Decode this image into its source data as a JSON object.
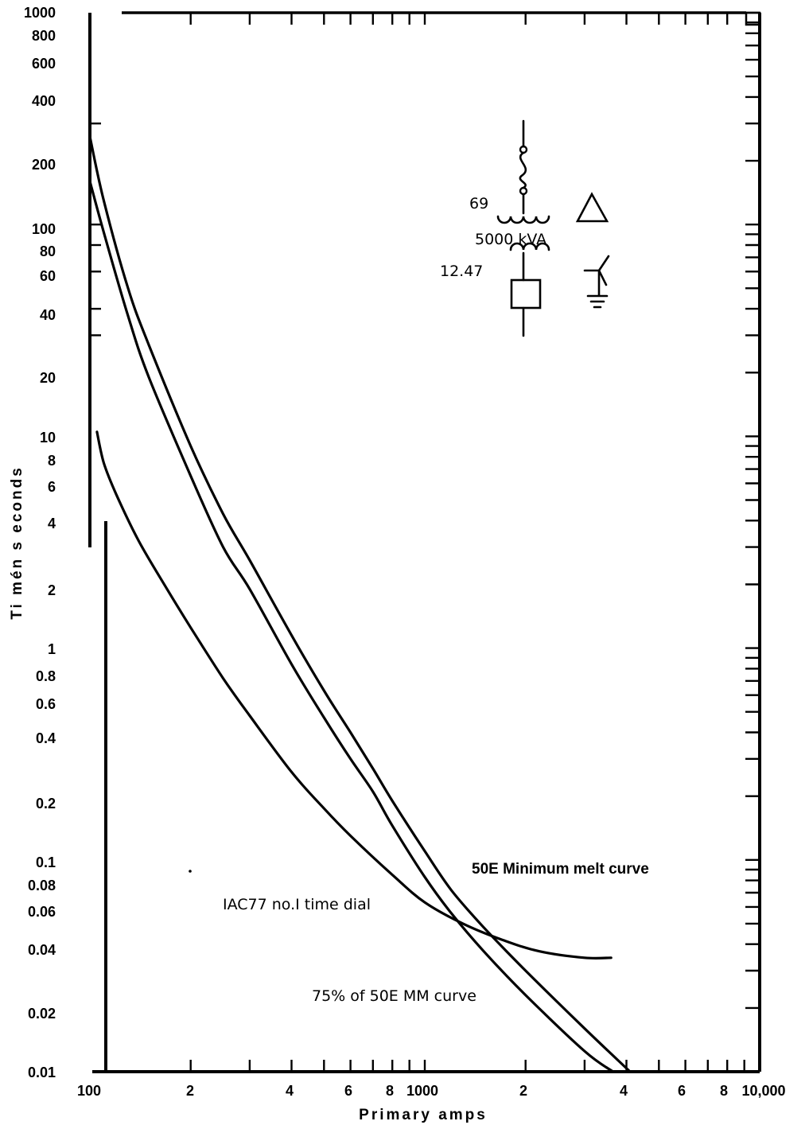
{
  "chart_data": {
    "type": "line",
    "title": "",
    "xlabel": "Primary amps",
    "ylabel": "Ti mén s econds",
    "x_scale": "log",
    "y_scale": "log",
    "xlim": [
      100,
      10000
    ],
    "ylim": [
      0.01,
      1000
    ],
    "x_tick_labels": [
      {
        "value": 100,
        "label": "100"
      },
      {
        "value": 200,
        "label": "2"
      },
      {
        "value": 400,
        "label": "4"
      },
      {
        "value": 600,
        "label": "6"
      },
      {
        "value": 800,
        "label": "8"
      },
      {
        "value": 1000,
        "label": "1000"
      },
      {
        "value": 2000,
        "label": "2"
      },
      {
        "value": 4000,
        "label": "4"
      },
      {
        "value": 6000,
        "label": "6"
      },
      {
        "value": 8000,
        "label": "8"
      },
      {
        "value": 10000,
        "label": "10,000"
      }
    ],
    "y_tick_labels": [
      {
        "value": 1000,
        "label": "1000"
      },
      {
        "value": 800,
        "label": "800"
      },
      {
        "value": 600,
        "label": "600"
      },
      {
        "value": 400,
        "label": "400"
      },
      {
        "value": 200,
        "label": "200"
      },
      {
        "value": 100,
        "label": "100"
      },
      {
        "value": 80,
        "label": "80"
      },
      {
        "value": 60,
        "label": "60"
      },
      {
        "value": 40,
        "label": "40"
      },
      {
        "value": 20,
        "label": "20"
      },
      {
        "value": 10,
        "label": "10"
      },
      {
        "value": 8,
        "label": "8"
      },
      {
        "value": 6,
        "label": "6"
      },
      {
        "value": 4,
        "label": "4"
      },
      {
        "value": 2,
        "label": "2"
      },
      {
        "value": 1,
        "label": "1"
      },
      {
        "value": 0.8,
        "label": "0.8"
      },
      {
        "value": 0.6,
        "label": "0.6"
      },
      {
        "value": 0.4,
        "label": "0.4"
      },
      {
        "value": 0.2,
        "label": "0.2"
      },
      {
        "value": 0.1,
        "label": "0.1"
      },
      {
        "value": 0.08,
        "label": "0.08"
      },
      {
        "value": 0.06,
        "label": "0.06"
      },
      {
        "value": 0.04,
        "label": "0.04"
      },
      {
        "value": 0.02,
        "label": "0.02"
      },
      {
        "value": 0.01,
        "label": "0.01"
      }
    ],
    "series": [
      {
        "name": "50E Minimum melt curve",
        "points": [
          [
            100,
            260
          ],
          [
            110,
            130
          ],
          [
            130,
            50
          ],
          [
            150,
            27
          ],
          [
            200,
            9
          ],
          [
            250,
            4.3
          ],
          [
            300,
            2.6
          ],
          [
            400,
            1.15
          ],
          [
            500,
            0.63
          ],
          [
            600,
            0.4
          ],
          [
            700,
            0.27
          ],
          [
            800,
            0.19
          ],
          [
            1000,
            0.11
          ],
          [
            1200,
            0.072
          ],
          [
            1500,
            0.048
          ],
          [
            2000,
            0.03
          ],
          [
            3000,
            0.016
          ],
          [
            4100,
            0.01
          ]
        ]
      },
      {
        "name": "75% of 50E MM curve",
        "points": [
          [
            100,
            160
          ],
          [
            110,
            92
          ],
          [
            130,
            37
          ],
          [
            150,
            19
          ],
          [
            200,
            6.5
          ],
          [
            250,
            3.0
          ],
          [
            300,
            1.9
          ],
          [
            400,
            0.84
          ],
          [
            500,
            0.47
          ],
          [
            600,
            0.3
          ],
          [
            700,
            0.21
          ],
          [
            800,
            0.145
          ],
          [
            1000,
            0.083
          ],
          [
            1200,
            0.056
          ],
          [
            1500,
            0.037
          ],
          [
            2000,
            0.023
          ],
          [
            3000,
            0.0125
          ],
          [
            3650,
            0.01
          ]
        ]
      },
      {
        "name": "IAC77 no.1 time dial",
        "points": [
          [
            105,
            10.5
          ],
          [
            110,
            7.5
          ],
          [
            120,
            5.3
          ],
          [
            140,
            3.2
          ],
          [
            170,
            1.9
          ],
          [
            200,
            1.25
          ],
          [
            250,
            0.72
          ],
          [
            300,
            0.48
          ],
          [
            400,
            0.26
          ],
          [
            500,
            0.175
          ],
          [
            600,
            0.13
          ],
          [
            800,
            0.085
          ],
          [
            1000,
            0.063
          ],
          [
            1300,
            0.05
          ],
          [
            1700,
            0.042
          ],
          [
            2200,
            0.037
          ],
          [
            3000,
            0.0345
          ],
          [
            3600,
            0.0345
          ]
        ]
      }
    ],
    "annotations": [
      {
        "text": "50E Minimum melt curve",
        "x": 2000,
        "y": 0.087
      },
      {
        "text": "IAC77 no.I time dial",
        "x": 390,
        "y": 0.06
      },
      {
        "text": "75% of 50E MM curve",
        "x": 1100,
        "y": 0.025
      }
    ]
  },
  "diagram": {
    "primary_voltage": "69",
    "transformer_rating": "5000 kVA",
    "secondary_voltage": "12.47"
  }
}
